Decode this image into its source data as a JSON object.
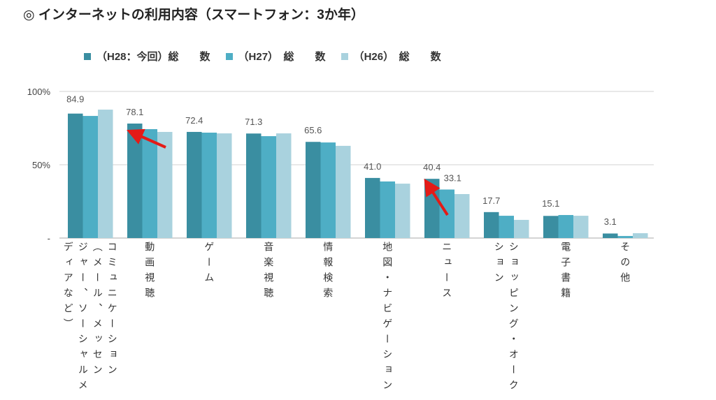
{
  "title": "◎ インターネットの利用内容（スマートフォン：3か年）",
  "chart_data": {
    "type": "bar",
    "title": "インターネットの利用内容（スマートフォン：3か年）",
    "ylim": [
      0,
      100
    ],
    "yticks": [
      {
        "value": 0,
        "label": "-"
      },
      {
        "value": 50,
        "label": "50%"
      },
      {
        "value": 100,
        "label": "100%"
      }
    ],
    "grid": true,
    "legend_position": "top",
    "categories": [
      {
        "label": "コミュニケーション（メール、メッセンジャー、ソーシャルメディアなど）",
        "lines": [
          "コミュニケーション",
          "（メール、メッセン",
          "ジャー、ソーシャルメ",
          "ディアなど）"
        ]
      },
      {
        "label": "動画視聴",
        "lines": [
          "動画視聴"
        ]
      },
      {
        "label": "ゲーム",
        "lines": [
          "ゲーム"
        ]
      },
      {
        "label": "音楽視聴",
        "lines": [
          "音楽視聴"
        ]
      },
      {
        "label": "情報検索",
        "lines": [
          "情報検索"
        ]
      },
      {
        "label": "地図・ナビゲーション",
        "lines": [
          "地図・ナビゲーション"
        ]
      },
      {
        "label": "ニュース",
        "lines": [
          "ニュース"
        ]
      },
      {
        "label": "ショッピング・オークション",
        "lines": [
          "ショッピング・オーク",
          "ション"
        ]
      },
      {
        "label": "電子書籍",
        "lines": [
          "電子書籍"
        ]
      },
      {
        "label": "その他",
        "lines": [
          "その他"
        ]
      }
    ],
    "series": [
      {
        "name": "（H28：今回）総　　数",
        "color": "#3a8ea1",
        "values": [
          84.9,
          78.1,
          72.4,
          71.3,
          65.6,
          41.0,
          40.4,
          17.7,
          15.1,
          3.1
        ]
      },
      {
        "name": "（H27）　総　　数",
        "color": "#4eaec5",
        "values": [
          83.3,
          74.3,
          71.9,
          69.5,
          65.2,
          38.6,
          33.1,
          15.2,
          15.7,
          1.4
        ]
      },
      {
        "name": "（H26）　総　　数",
        "color": "#a9d2de",
        "values": [
          87.6,
          72.4,
          71.4,
          71.4,
          62.9,
          37.1,
          30.0,
          12.4,
          15.2,
          3.3
        ]
      }
    ],
    "data_labels": [
      {
        "category": 0,
        "series": 0,
        "text": "84.9"
      },
      {
        "category": 1,
        "series": 0,
        "text": "78.1"
      },
      {
        "category": 2,
        "series": 0,
        "text": "72.4"
      },
      {
        "category": 3,
        "series": 0,
        "text": "71.3"
      },
      {
        "category": 4,
        "series": 0,
        "text": "65.6"
      },
      {
        "category": 5,
        "series": 0,
        "text": "41.0"
      },
      {
        "category": 6,
        "series": 0,
        "text": "40.4"
      },
      {
        "category": 6,
        "series": 1,
        "text": "33.1"
      },
      {
        "category": 7,
        "series": 0,
        "text": "17.7"
      },
      {
        "category": 8,
        "series": 0,
        "text": "15.1"
      },
      {
        "category": 9,
        "series": 0,
        "text": "3.1"
      }
    ],
    "annotations": [
      {
        "type": "arrow",
        "color": "#e41b17",
        "points_to": {
          "category": 1,
          "series": 0
        }
      },
      {
        "type": "arrow",
        "color": "#e41b17",
        "points_to": {
          "category": 6,
          "series": 0
        }
      }
    ]
  }
}
